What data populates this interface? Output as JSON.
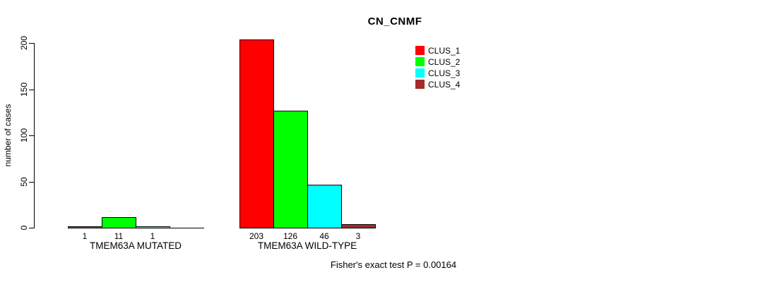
{
  "chart_data": {
    "type": "bar",
    "title": "CN_CNMF",
    "ylabel": "number of cases",
    "xlabel": "",
    "ylim": [
      0,
      200
    ],
    "yticks": [
      0,
      50,
      100,
      150,
      200
    ],
    "grid": false,
    "legend_position": "top-right",
    "series": [
      "CLUS_1",
      "CLUS_2",
      "CLUS_3",
      "CLUS_4"
    ],
    "colors": [
      "#ff0000",
      "#00ff00",
      "#00ffff",
      "#a52a2a"
    ],
    "groups": [
      {
        "label": "TMEM63A MUTATED",
        "values": [
          1,
          11,
          1,
          0
        ],
        "bar_labels": [
          "1",
          "11",
          "1",
          ""
        ]
      },
      {
        "label": "TMEM63A WILD-TYPE",
        "values": [
          203,
          126,
          46,
          3
        ],
        "bar_labels": [
          "203",
          "126",
          "46",
          "3"
        ]
      }
    ],
    "annotation": "Fisher's exact test P = 0.00164"
  }
}
